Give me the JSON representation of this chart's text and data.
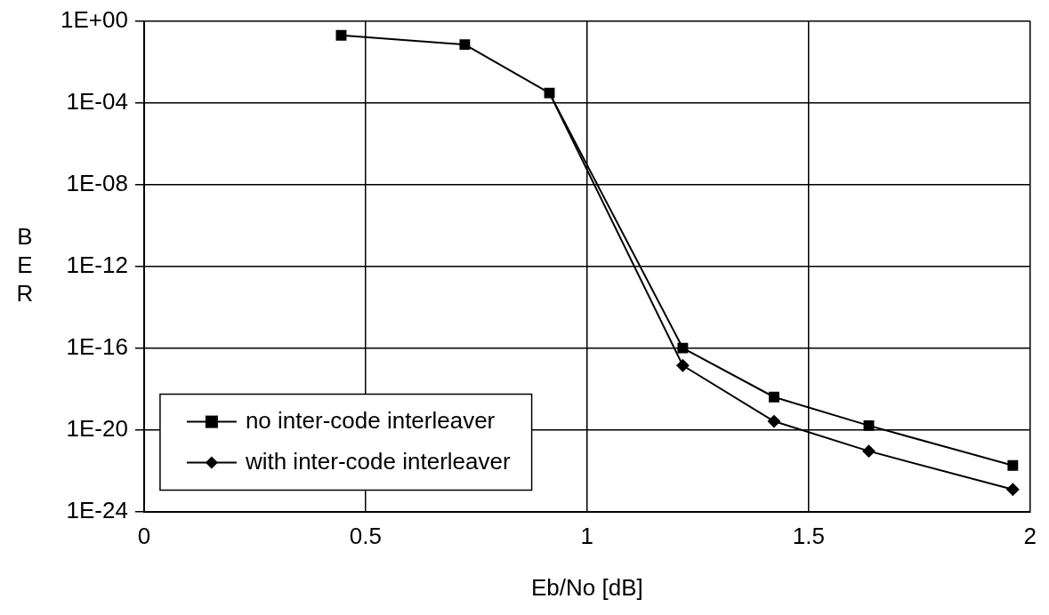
{
  "chart_data": {
    "type": "line",
    "xlabel": "Eb/No [dB]",
    "ylabel": "BER",
    "log": "y",
    "grid": true,
    "legend": "bottom left",
    "xlim": [
      0,
      2
    ],
    "xticks": [
      0,
      0.5,
      1,
      1.5,
      2
    ],
    "ylim": [
      1e-24,
      1
    ],
    "yticks": [
      {
        "value": 1,
        "label": "1E+00"
      },
      {
        "value": 0.0001,
        "label": "1E-04"
      },
      {
        "value": 1e-08,
        "label": "1E-08"
      },
      {
        "value": 1e-12,
        "label": "1E-12"
      },
      {
        "value": 1e-16,
        "label": "1E-16"
      },
      {
        "value": 1e-20,
        "label": "1E-20"
      },
      {
        "value": 1e-24,
        "label": "1E-24"
      }
    ],
    "series": [
      {
        "name": "no inter-code interleaver",
        "color": "#000000",
        "marker": "square",
        "x": [
          0.445,
          0.724,
          0.915,
          1.216,
          1.422,
          1.636,
          1.961
        ],
        "values": [
          0.2,
          0.07,
          0.0003,
          1e-16,
          4e-19,
          1.6e-20,
          1.8e-22
        ]
      },
      {
        "name": "with inter-code interleaver",
        "color": "#000000",
        "marker": "diamond",
        "x": [
          0.915,
          1.216,
          1.422,
          1.636,
          1.961
        ],
        "values": [
          0.0003,
          1.4e-17,
          2.6e-20,
          9e-22,
          1.2e-23
        ]
      }
    ]
  }
}
